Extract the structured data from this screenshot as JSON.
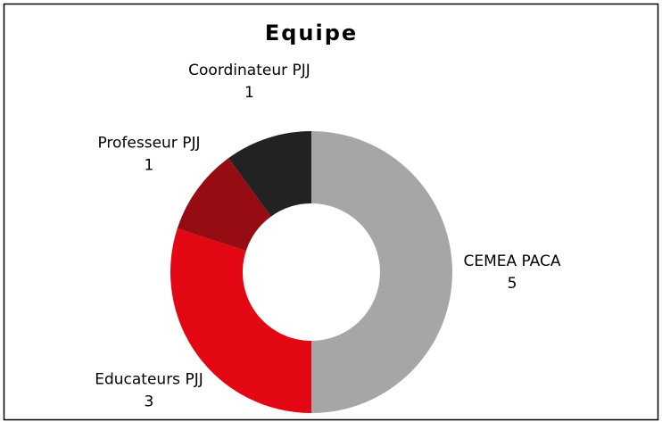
{
  "chart_data": {
    "type": "pie",
    "title": "Equipe",
    "categories": [
      "CEMEA PACA",
      "Educateurs PJJ",
      "Professeur PJJ",
      "Coordinateur PJJ"
    ],
    "values": [
      5,
      3,
      1,
      1
    ],
    "colors": [
      "#a6a6a6",
      "#e30613",
      "#960c12",
      "#222222"
    ]
  }
}
